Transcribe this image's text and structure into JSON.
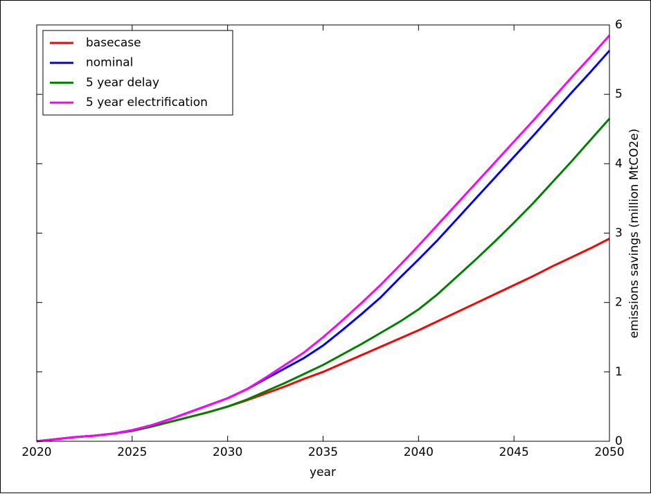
{
  "chart_data": {
    "type": "line",
    "x_label": "year",
    "y_label": "emissions savings (million MtCO2e)",
    "x": [
      2020,
      2021,
      2022,
      2023,
      2024,
      2025,
      2026,
      2027,
      2028,
      2029,
      2030,
      2031,
      2032,
      2033,
      2034,
      2035,
      2036,
      2037,
      2038,
      2039,
      2040,
      2041,
      2042,
      2043,
      2044,
      2045,
      2046,
      2047,
      2048,
      2049,
      2050
    ],
    "series": [
      {
        "name": "basecase",
        "color": "#ff0000",
        "values": [
          0,
          0.03,
          0.06,
          0.08,
          0.11,
          0.15,
          0.21,
          0.28,
          0.35,
          0.42,
          0.5,
          0.59,
          0.69,
          0.79,
          0.9,
          1.0,
          1.12,
          1.24,
          1.36,
          1.48,
          1.6,
          1.73,
          1.86,
          1.99,
          2.12,
          2.25,
          2.38,
          2.52,
          2.65,
          2.78,
          2.92
        ]
      },
      {
        "name": "nominal",
        "color": "#0000ff",
        "values": [
          0,
          0.03,
          0.06,
          0.08,
          0.11,
          0.16,
          0.23,
          0.32,
          0.42,
          0.52,
          0.62,
          0.75,
          0.9,
          1.05,
          1.2,
          1.38,
          1.6,
          1.83,
          2.07,
          2.35,
          2.62,
          2.9,
          3.2,
          3.5,
          3.8,
          4.1,
          4.4,
          4.71,
          5.02,
          5.32,
          5.63
        ]
      },
      {
        "name": "5 year delay",
        "color": "#008000",
        "values": [
          0,
          0.03,
          0.06,
          0.08,
          0.11,
          0.15,
          0.21,
          0.28,
          0.35,
          0.42,
          0.5,
          0.6,
          0.72,
          0.84,
          0.97,
          1.1,
          1.25,
          1.4,
          1.56,
          1.72,
          1.9,
          2.12,
          2.37,
          2.62,
          2.88,
          3.15,
          3.43,
          3.73,
          4.03,
          4.34,
          4.65
        ]
      },
      {
        "name": "5 year electrification",
        "color": "#ff00ff",
        "values": [
          0,
          0.03,
          0.06,
          0.08,
          0.11,
          0.16,
          0.23,
          0.32,
          0.42,
          0.52,
          0.62,
          0.75,
          0.92,
          1.1,
          1.28,
          1.5,
          1.74,
          1.99,
          2.25,
          2.53,
          2.82,
          3.12,
          3.42,
          3.72,
          4.02,
          4.32,
          4.62,
          4.93,
          5.24,
          5.54,
          5.85
        ]
      }
    ],
    "xlim": [
      2020,
      2050
    ],
    "xticks": [
      2020,
      2025,
      2030,
      2035,
      2040,
      2045,
      2050
    ],
    "ylim": [
      0,
      6
    ],
    "yticks": [
      0,
      1,
      2,
      3,
      4,
      5,
      6
    ],
    "y_axis_side": "right",
    "legend": "upper left",
    "grid": false
  }
}
